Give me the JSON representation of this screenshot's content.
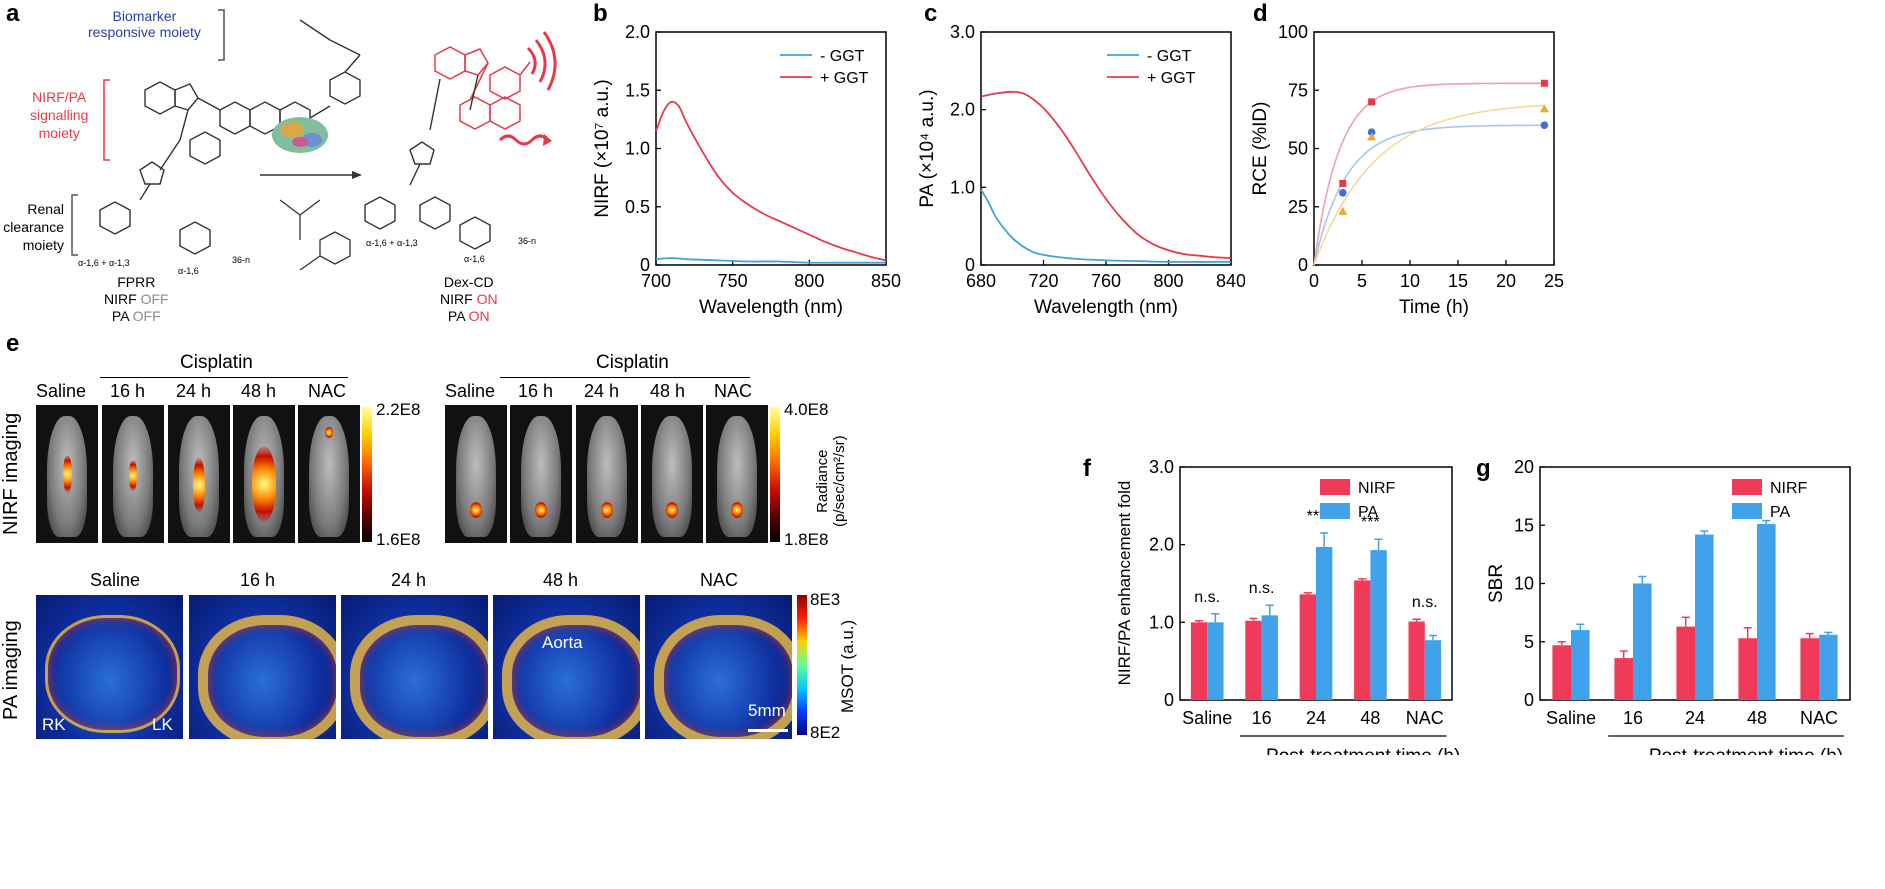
{
  "panel_letters": [
    "a",
    "b",
    "c",
    "d",
    "e",
    "f",
    "g"
  ],
  "scheme": {
    "biomarker_label": [
      "Biomarker",
      "responsive moiety"
    ],
    "signalling_label": [
      "NIRF/PA",
      "signalling",
      "moiety"
    ],
    "renal_label": [
      "Renal",
      "clearance",
      "moiety"
    ],
    "linkage_left": "α-1,6 + α-1,3",
    "linkage_left2": "α-1,6",
    "linkage_right": "α-1,6 + α-1,3",
    "linkage_right2": "α-1,6",
    "n_left": "36-n",
    "n_right": "36-n",
    "probe_name": "FPRR",
    "probe_nirf": "NIRF",
    "probe_nirf_state": "OFF",
    "probe_pa": "PA",
    "probe_pa_state": "OFF",
    "product_name": "Dex-CD",
    "product_nirf": "NIRF",
    "product_nirf_state": "ON",
    "product_pa": "PA",
    "product_pa_state": "ON",
    "colors": {
      "blue": "#2a3fb0",
      "red": "#e8394b",
      "grey": "#8c8c8c"
    }
  },
  "panel_e": {
    "cisplatin_label": "Cisplatin",
    "groups": [
      "Saline",
      "16 h",
      "24 h",
      "48 h",
      "NAC"
    ],
    "nirf_row_label": "NIRF imaging",
    "pa_row_label": "PA imaging",
    "scale1_max": "2.2E8",
    "scale1_min": "1.6E8",
    "scale2_max": "4.0E8",
    "scale2_min": "1.8E8",
    "radiance_label": "Radiance",
    "radiance_units": "(p/sec/cm²/sr)",
    "pa_groups": [
      "Saline",
      "16 h",
      "24 h",
      "48 h",
      "NAC"
    ],
    "pa_scale_max": "8E3",
    "pa_scale_min": "8E2",
    "pa_scale_label": "MSOT (a.u.)",
    "rk_label": "RK",
    "lk_label": "LK",
    "aorta_label": "Aorta",
    "scalebar_label": "5mm"
  },
  "chart_data": [
    {
      "id": "b",
      "type": "line",
      "xlabel": "Wavelength (nm)",
      "ylabel": "NIRF (×10⁷ a.u.)",
      "xlim": [
        700,
        850
      ],
      "ylim": [
        0,
        2.0
      ],
      "xticks": [
        700,
        750,
        800,
        850
      ],
      "yticks": [
        0,
        0.5,
        1.0,
        1.5,
        2.0
      ],
      "ytick_labels": [
        "0",
        "0.5",
        "1.0",
        "1.5",
        "2.0"
      ],
      "legend": "top-right",
      "series": [
        {
          "name": "- GGT",
          "color": "#3ea3dc",
          "x": [
            700,
            710,
            720,
            740,
            760,
            780,
            800,
            820,
            850
          ],
          "y": [
            0.05,
            0.06,
            0.05,
            0.04,
            0.03,
            0.03,
            0.02,
            0.02,
            0.02
          ]
        },
        {
          "name": "+ GGT",
          "color": "#e8394b",
          "x": [
            700,
            705,
            710,
            715,
            720,
            730,
            740,
            750,
            760,
            770,
            780,
            790,
            800,
            810,
            820,
            830,
            840,
            850
          ],
          "y": [
            1.15,
            1.32,
            1.4,
            1.36,
            1.22,
            0.98,
            0.77,
            0.62,
            0.52,
            0.44,
            0.38,
            0.32,
            0.26,
            0.2,
            0.15,
            0.11,
            0.07,
            0.04
          ]
        }
      ]
    },
    {
      "id": "c",
      "type": "line",
      "xlabel": "Wavelength (nm)",
      "ylabel": "PA (×10⁴ a.u.)",
      "xlim": [
        680,
        840
      ],
      "ylim": [
        0,
        3.0
      ],
      "xticks": [
        680,
        720,
        760,
        800,
        840
      ],
      "yticks": [
        0,
        1.0,
        2.0,
        3.0
      ],
      "ytick_labels": [
        "0",
        "1.0",
        "2.0",
        "3.0"
      ],
      "legend": "top-right",
      "series": [
        {
          "name": "- GGT",
          "color": "#3ea3dc",
          "x": [
            680,
            685,
            690,
            700,
            710,
            720,
            740,
            760,
            780,
            800,
            840
          ],
          "y": [
            0.97,
            0.8,
            0.6,
            0.35,
            0.2,
            0.13,
            0.08,
            0.06,
            0.05,
            0.04,
            0.04
          ]
        },
        {
          "name": "+ GGT",
          "color": "#e8394b",
          "x": [
            680,
            690,
            700,
            705,
            710,
            720,
            730,
            740,
            750,
            760,
            770,
            780,
            790,
            800,
            810,
            820,
            830,
            840
          ],
          "y": [
            2.17,
            2.21,
            2.23,
            2.22,
            2.18,
            2.02,
            1.78,
            1.48,
            1.15,
            0.85,
            0.6,
            0.4,
            0.27,
            0.19,
            0.14,
            0.12,
            0.1,
            0.09
          ]
        }
      ]
    },
    {
      "id": "d",
      "type": "scatter",
      "xlabel": "Time (h)",
      "ylabel": "RCE (%ID)",
      "xlim": [
        0,
        25
      ],
      "ylim": [
        0,
        100
      ],
      "xticks": [
        0,
        5,
        10,
        15,
        20,
        25
      ],
      "yticks": [
        0,
        25,
        50,
        75,
        100
      ],
      "series": [
        {
          "color": "#e8394b",
          "marker": "square",
          "x": [
            3,
            6,
            24
          ],
          "y": [
            35,
            70,
            78
          ]
        },
        {
          "color": "#3f6fd0",
          "marker": "circle",
          "x": [
            3,
            6,
            24
          ],
          "y": [
            31,
            57,
            60
          ]
        },
        {
          "color": "#e0b030",
          "marker": "triangle",
          "x": [
            3,
            6,
            24
          ],
          "y": [
            23,
            55,
            67
          ]
        }
      ],
      "fits": [
        {
          "color": "#f0a0aa",
          "A": 78,
          "k": 0.38
        },
        {
          "color": "#a9c4ec",
          "A": 60,
          "k": 0.3
        },
        {
          "color": "#f3da9a",
          "A": 70,
          "k": 0.16
        }
      ]
    },
    {
      "id": "f",
      "type": "bar",
      "xlabel": "Post-treatment time (h)",
      "ylabel": "NIRF/PA enhancement fold",
      "categories": [
        "Saline",
        "16",
        "24",
        "48",
        "NAC"
      ],
      "ylim": [
        0,
        3.0
      ],
      "yticks": [
        0,
        1.0,
        2.0,
        3.0
      ],
      "ytick_labels": [
        "0",
        "1.0",
        "2.0",
        "3.0"
      ],
      "legend": "top-right",
      "annotations": [
        "n.s.",
        "n.s.",
        "***",
        "***",
        "n.s."
      ],
      "series": [
        {
          "name": "NIRF",
          "color": "#f03a5a",
          "values": [
            1.0,
            1.02,
            1.36,
            1.54,
            1.01
          ],
          "errors": [
            0.02,
            0.03,
            0.02,
            0.02,
            0.03
          ]
        },
        {
          "name": "PA",
          "color": "#3fa2ea",
          "values": [
            1.0,
            1.09,
            1.97,
            1.93,
            0.77
          ],
          "errors": [
            0.11,
            0.13,
            0.18,
            0.14,
            0.06
          ]
        }
      ]
    },
    {
      "id": "g",
      "type": "bar",
      "xlabel": "Post-treatment time (h)",
      "ylabel": "SBR",
      "categories": [
        "Saline",
        "16",
        "24",
        "48",
        "NAC"
      ],
      "ylim": [
        0,
        20
      ],
      "yticks": [
        0,
        5,
        10,
        15,
        20
      ],
      "ytick_labels": [
        "0",
        "5",
        "10",
        "15",
        "20"
      ],
      "legend": "top-right",
      "series": [
        {
          "name": "NIRF",
          "color": "#f03a5a",
          "values": [
            4.7,
            3.6,
            6.3,
            5.3,
            5.3
          ],
          "errors": [
            0.3,
            0.6,
            0.8,
            0.9,
            0.4
          ]
        },
        {
          "name": "PA",
          "color": "#3fa2ea",
          "values": [
            6.0,
            10.0,
            14.2,
            15.1,
            5.6
          ],
          "errors": [
            0.5,
            0.6,
            0.3,
            0.3,
            0.2
          ]
        }
      ]
    }
  ]
}
